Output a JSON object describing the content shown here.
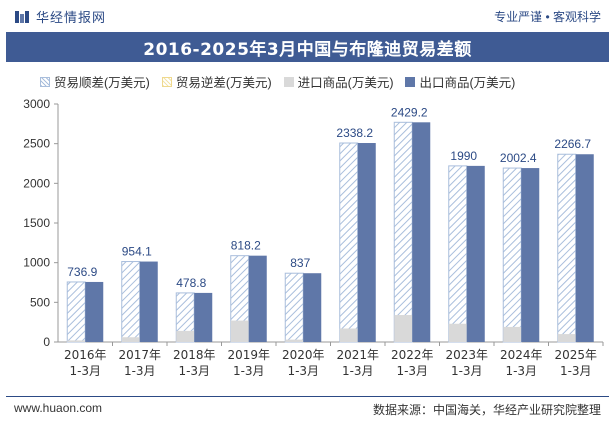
{
  "header": {
    "brand": "华经情报网",
    "slogan": "专业严谨 • 客观科学"
  },
  "chart_data": {
    "type": "bar",
    "title": "2016-2025年3月中国与布隆迪贸易差额",
    "categories": [
      "2016年\n1-3月",
      "2017年\n1-3月",
      "2018年\n1-3月",
      "2019年\n1-3月",
      "2020年\n1-3月",
      "2021年\n1-3月",
      "2022年\n1-3月",
      "2023年\n1-3月",
      "2024年\n1-3月",
      "2025年\n1-3月"
    ],
    "series": [
      {
        "name": "贸易顺差(万美元)",
        "values": [
          736.9,
          954.1,
          478.8,
          818.2,
          837,
          2338.2,
          2429.2,
          1990,
          2002.4,
          2266.7
        ]
      },
      {
        "name": "贸易逆差(万美元)",
        "values": [
          0,
          0,
          0,
          0,
          0,
          0,
          0,
          0,
          0,
          0
        ]
      },
      {
        "name": "进口商品(万美元)",
        "values": [
          20,
          60,
          140,
          270,
          30,
          170,
          340,
          230,
          190,
          100
        ]
      },
      {
        "name": "出口商品(万美元)",
        "values": [
          756.9,
          1014.1,
          618.8,
          1088.2,
          867,
          2508.2,
          2769.2,
          2220,
          2192.4,
          2366.7
        ]
      }
    ],
    "data_labels": [
      "736.9",
      "954.1",
      "478.8",
      "818.2",
      "837",
      "2338.2",
      "2429.2",
      "1990",
      "2002.4",
      "2266.7"
    ],
    "yticks": [
      "0",
      "500",
      "1000",
      "1500",
      "2000",
      "2500",
      "3000"
    ],
    "ylim": [
      0,
      3000
    ],
    "legend_position": "top",
    "grid": false,
    "colors": {
      "surplus": "#a9bedc",
      "deficit": "#efd98e",
      "import": "#d9d9d9",
      "export": "#5f77a8",
      "label": "#2c4a85"
    }
  },
  "footer": {
    "website": "www.huaon.com",
    "source": "数据来源：中国海关，华经产业研究院整理"
  }
}
